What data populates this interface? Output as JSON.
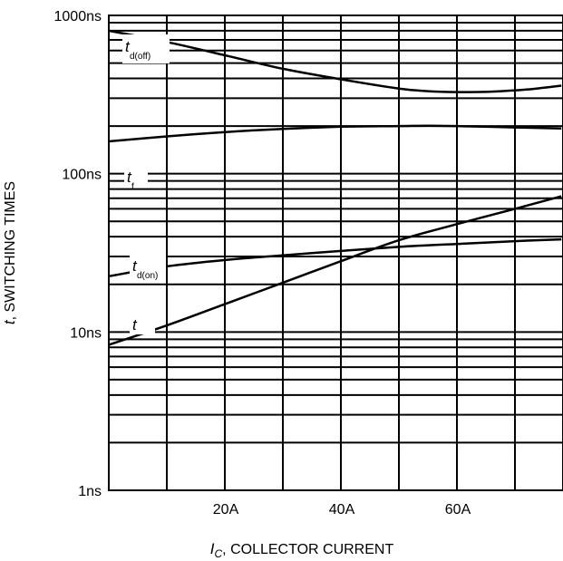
{
  "chart_data": {
    "type": "line",
    "xlabel": {
      "symbol": "I",
      "subscript": "C",
      "text": ", COLLECTOR CURRENT"
    },
    "ylabel": {
      "symbol": "t",
      "text": ", SWITCHING TIMES"
    },
    "y_scale": "log",
    "y_unit": "ns",
    "xlim": [
      0,
      78
    ],
    "ylim": [
      1,
      1000
    ],
    "x_ticks": [
      {
        "value": 20,
        "label": "20A"
      },
      {
        "value": 40,
        "label": "40A"
      },
      {
        "value": 60,
        "label": "60A"
      }
    ],
    "y_ticks": [
      {
        "value": 1,
        "label": "1ns"
      },
      {
        "value": 10,
        "label": "10ns"
      },
      {
        "value": 100,
        "label": "100ns"
      },
      {
        "value": 1000,
        "label": "1000ns"
      }
    ],
    "grid": true,
    "legend": "none",
    "series": [
      {
        "name": "td(off)",
        "label_main": "t",
        "label_sub": "d(off)",
        "points": [
          [
            0,
            800
          ],
          [
            10,
            680
          ],
          [
            20,
            560
          ],
          [
            30,
            460
          ],
          [
            40,
            395
          ],
          [
            50,
            345
          ],
          [
            55,
            332
          ],
          [
            60,
            328
          ],
          [
            66,
            330
          ],
          [
            72,
            340
          ],
          [
            78,
            360
          ]
        ]
      },
      {
        "name": "tf",
        "label_main": "t",
        "label_sub": "f",
        "points": [
          [
            0,
            160
          ],
          [
            10,
            172
          ],
          [
            20,
            183
          ],
          [
            30,
            192
          ],
          [
            40,
            198
          ],
          [
            50,
            200
          ],
          [
            55,
            201
          ],
          [
            60,
            200
          ],
          [
            70,
            196
          ],
          [
            78,
            193
          ]
        ]
      },
      {
        "name": "td(on)",
        "label_main": "t",
        "label_sub": "d(on)",
        "points": [
          [
            0,
            22.5
          ],
          [
            10,
            26
          ],
          [
            20,
            28.5
          ],
          [
            30,
            30.5
          ],
          [
            40,
            32.5
          ],
          [
            50,
            34.5
          ],
          [
            60,
            36
          ],
          [
            70,
            37.5
          ],
          [
            78,
            38.5
          ]
        ]
      },
      {
        "name": "tr",
        "label_main": "t",
        "label_sub": "",
        "points": [
          [
            0,
            8.3
          ],
          [
            10,
            11
          ],
          [
            20,
            15
          ],
          [
            30,
            20.5
          ],
          [
            40,
            28
          ],
          [
            50,
            38
          ],
          [
            60,
            48
          ],
          [
            70,
            60
          ],
          [
            78,
            72
          ]
        ]
      }
    ]
  }
}
